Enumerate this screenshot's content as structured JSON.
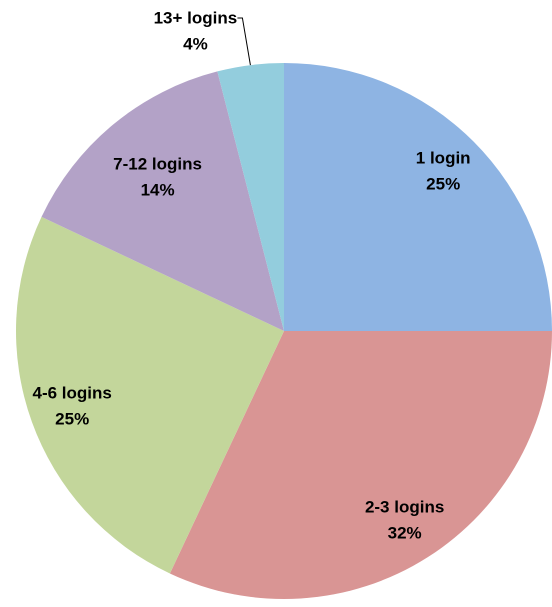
{
  "chart_data": {
    "type": "pie",
    "categories": [
      "1 login",
      "2-3 logins",
      "4-6 logins",
      "7-12 logins",
      "13+ logins"
    ],
    "values": [
      25,
      32,
      25,
      14,
      4
    ],
    "value_labels": [
      "25%",
      "32%",
      "25%",
      "14%",
      "4%"
    ],
    "colors": [
      "#8eb4e3",
      "#d99594",
      "#c3d69b",
      "#b3a2c7",
      "#93cddd"
    ]
  }
}
